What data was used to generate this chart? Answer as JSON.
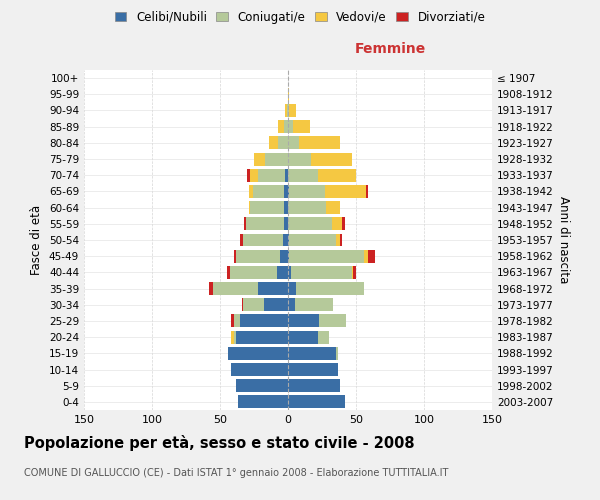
{
  "age_groups": [
    "0-4",
    "5-9",
    "10-14",
    "15-19",
    "20-24",
    "25-29",
    "30-34",
    "35-39",
    "40-44",
    "45-49",
    "50-54",
    "55-59",
    "60-64",
    "65-69",
    "70-74",
    "75-79",
    "80-84",
    "85-89",
    "90-94",
    "95-99",
    "100+"
  ],
  "birth_years": [
    "2003-2007",
    "1998-2002",
    "1993-1997",
    "1988-1992",
    "1983-1987",
    "1978-1982",
    "1973-1977",
    "1968-1972",
    "1963-1967",
    "1958-1962",
    "1953-1957",
    "1948-1952",
    "1943-1947",
    "1938-1942",
    "1933-1937",
    "1928-1932",
    "1923-1927",
    "1918-1922",
    "1913-1917",
    "1908-1912",
    "≤ 1907"
  ],
  "colors": {
    "celibe": "#3a6ea5",
    "coniugato": "#b5c99a",
    "vedovo": "#f5c842",
    "divorziato": "#cc2222"
  },
  "male": {
    "celibe": [
      37,
      38,
      42,
      44,
      38,
      35,
      18,
      22,
      8,
      6,
      4,
      3,
      3,
      3,
      2,
      0,
      0,
      0,
      0,
      0,
      0
    ],
    "coniugato": [
      0,
      0,
      0,
      0,
      2,
      5,
      15,
      33,
      35,
      32,
      29,
      28,
      25,
      23,
      20,
      17,
      7,
      3,
      1,
      0,
      0
    ],
    "vedovo": [
      0,
      0,
      0,
      0,
      2,
      0,
      0,
      0,
      0,
      0,
      0,
      0,
      1,
      3,
      6,
      8,
      7,
      4,
      1,
      0,
      0
    ],
    "divorziato": [
      0,
      0,
      0,
      0,
      0,
      2,
      1,
      3,
      2,
      2,
      2,
      1,
      0,
      0,
      2,
      0,
      0,
      0,
      0,
      0,
      0
    ]
  },
  "female": {
    "celibe": [
      42,
      38,
      37,
      35,
      22,
      23,
      5,
      6,
      2,
      1,
      1,
      0,
      0,
      1,
      0,
      0,
      0,
      0,
      0,
      0,
      0
    ],
    "coniugato": [
      0,
      0,
      0,
      2,
      8,
      20,
      28,
      50,
      45,
      55,
      34,
      32,
      28,
      26,
      22,
      17,
      8,
      4,
      1,
      0,
      0
    ],
    "vedovo": [
      0,
      0,
      0,
      0,
      0,
      0,
      0,
      0,
      1,
      3,
      3,
      8,
      10,
      30,
      28,
      30,
      30,
      12,
      5,
      1,
      0
    ],
    "divorziato": [
      0,
      0,
      0,
      0,
      0,
      0,
      0,
      0,
      2,
      5,
      2,
      2,
      0,
      2,
      0,
      0,
      0,
      0,
      0,
      0,
      0
    ]
  },
  "title": "Popolazione per età, sesso e stato civile - 2008",
  "subtitle": "COMUNE DI GALLUCCIO (CE) - Dati ISTAT 1° gennaio 2008 - Elaborazione TUTTITALIA.IT",
  "xlabel_right": "Femmine",
  "ylabel_left": "Fasce di età",
  "ylabel_right": "Anni di nascita",
  "xlim": 150,
  "legend_labels": [
    "Celibi/Nubili",
    "Coniugati/e",
    "Vedovi/e",
    "Divorziati/e"
  ],
  "background_color": "#f0f0f0",
  "plot_bg_color": "#ffffff"
}
